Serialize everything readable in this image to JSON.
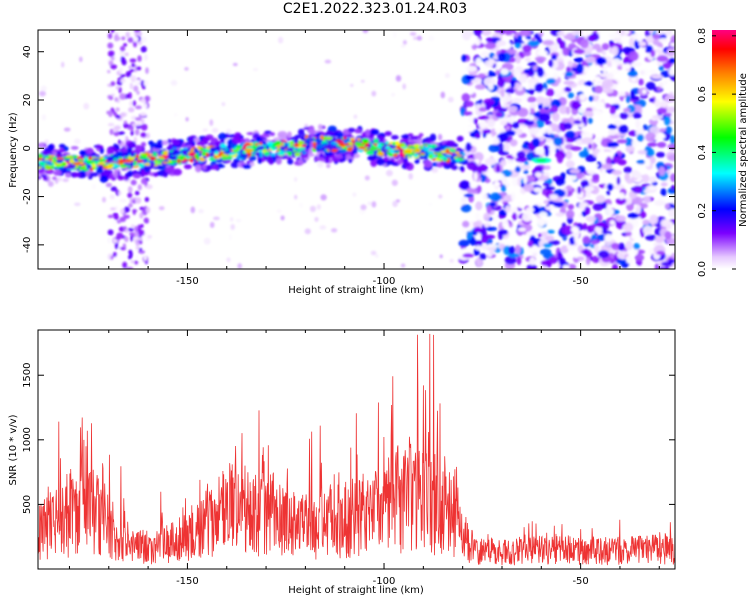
{
  "figure": {
    "title": "C2E1.2022.323.01.24.R03"
  },
  "chart_data": [
    {
      "type": "heatmap",
      "panel": "top",
      "xlabel": "Height of straight line (km)",
      "ylabel": "Frequency (Hz)",
      "xlim": [
        -188,
        -26
      ],
      "ylim": [
        -50,
        49
      ],
      "x_ticks": [
        -150,
        -100,
        -50
      ],
      "y_ticks": [
        -40,
        -20,
        0,
        20,
        40
      ],
      "grid": false,
      "colorbar": {
        "label": "Normalized spectral amplitude",
        "range": [
          0.0,
          0.82
        ],
        "ticks": [
          0.0,
          0.2,
          0.4,
          0.6,
          0.8
        ],
        "colormap": [
          "#ffffff",
          "#e6c8ff",
          "#7b00ff",
          "#0000ff",
          "#00ffff",
          "#00ff00",
          "#ffff00",
          "#ff7f00",
          "#ff0000",
          "#ff0080"
        ]
      },
      "features": [
        {
          "x_range": [
            -188,
            -80
          ],
          "center_freq_hz": -3,
          "freq_halfwidth_hz": 5,
          "peak_amplitude": 0.82
        },
        {
          "x_range": [
            -80,
            -26
          ],
          "description": "broadband scattered noise",
          "peak_amplitude": 0.25
        },
        {
          "x_range": [
            -170,
            -160
          ],
          "description": "vertical noise stripe",
          "peak_amplitude": 0.15
        },
        {
          "x": -60,
          "freq_hz": -5,
          "peak_amplitude": 0.35
        }
      ]
    },
    {
      "type": "line",
      "panel": "bottom",
      "xlabel": "Height of straight line (km)",
      "ylabel": "SNR (10 * v/v)",
      "xlim": [
        -188,
        -26
      ],
      "ylim": [
        0,
        1850
      ],
      "x_ticks": [
        -150,
        -100,
        -50
      ],
      "y_ticks": [
        500,
        1000,
        1500
      ],
      "grid": false,
      "series": [
        {
          "color": "#ee3333",
          "envelope": [
            {
              "x": -188,
              "mean": 300,
              "max": 650
            },
            {
              "x": -183,
              "mean": 380,
              "max": 1200
            },
            {
              "x": -178,
              "mean": 420,
              "max": 1270
            },
            {
              "x": -173,
              "mean": 500,
              "max": 1200
            },
            {
              "x": -168,
              "mean": 260,
              "max": 900
            },
            {
              "x": -162,
              "mean": 180,
              "max": 500
            },
            {
              "x": -158,
              "mean": 170,
              "max": 650
            },
            {
              "x": -152,
              "mean": 250,
              "max": 580
            },
            {
              "x": -148,
              "mean": 320,
              "max": 700
            },
            {
              "x": -142,
              "mean": 480,
              "max": 1450
            },
            {
              "x": -137,
              "mean": 500,
              "max": 1350
            },
            {
              "x": -132,
              "mean": 420,
              "max": 1300
            },
            {
              "x": -127,
              "mean": 460,
              "max": 1260
            },
            {
              "x": -122,
              "mean": 330,
              "max": 900
            },
            {
              "x": -116,
              "mean": 380,
              "max": 1180
            },
            {
              "x": -110,
              "mean": 400,
              "max": 1100
            },
            {
              "x": -104,
              "mean": 470,
              "max": 1350
            },
            {
              "x": -99,
              "mean": 520,
              "max": 1400
            },
            {
              "x": -94,
              "mean": 620,
              "max": 1820
            },
            {
              "x": -89,
              "mean": 540,
              "max": 1850
            },
            {
              "x": -84,
              "mean": 520,
              "max": 1750
            },
            {
              "x": -80,
              "mean": 260,
              "max": 800
            },
            {
              "x": -78,
              "mean": 140,
              "max": 320
            },
            {
              "x": -60,
              "mean": 150,
              "max": 380
            },
            {
              "x": -40,
              "mean": 150,
              "max": 400
            },
            {
              "x": -26,
              "mean": 160,
              "max": 380
            }
          ]
        }
      ]
    }
  ]
}
